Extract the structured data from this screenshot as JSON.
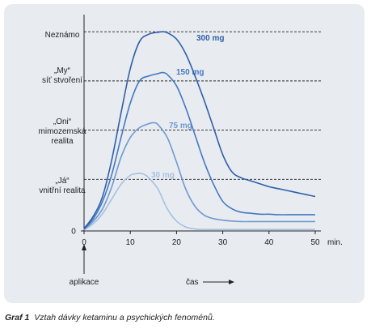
{
  "caption": {
    "label": "Graf 1",
    "text": "Vztah dávky ketaminu a psychických fenoménů."
  },
  "y_levels": [
    {
      "lines": [
        "Neznámo"
      ]
    },
    {
      "lines": [
        "„My“",
        "síť stvoření"
      ]
    },
    {
      "lines": [
        "„Oni“",
        "mimozemská",
        "realita"
      ]
    },
    {
      "lines": [
        "„Já“",
        "vnitřní realita"
      ]
    }
  ],
  "x_unit_label": "min.",
  "annotations": {
    "start": "aplikace",
    "time": "čas"
  },
  "colors": {
    "panel": "#e8ecf1",
    "axis": "#222222",
    "dose_300": "#2e5fa8",
    "dose_150": "#4478c0",
    "dose_75": "#6f98d0",
    "dose_30": "#a6c0e2"
  },
  "chart_data": {
    "type": "line",
    "title": "",
    "xlabel": "min.",
    "ylabel": "",
    "xlim": [
      0,
      50
    ],
    "ylim": [
      0,
      4.3
    ],
    "x_ticks": [
      0,
      10,
      20,
      30,
      40,
      50
    ],
    "y_ticks": [
      0
    ],
    "grid": false,
    "reference_lines": [
      1.05,
      2.05,
      3.05,
      4.05
    ],
    "series": [
      {
        "name": "300 mg",
        "color": "#2e5fa8",
        "x": [
          0,
          2,
          4,
          6,
          8,
          10,
          12,
          14,
          16,
          17,
          18,
          20,
          22,
          24,
          26,
          28,
          30,
          32,
          34,
          36,
          38,
          40,
          42,
          44,
          46,
          48,
          50
        ],
        "y": [
          0.05,
          0.3,
          0.7,
          1.45,
          2.4,
          3.3,
          3.85,
          4.0,
          4.04,
          4.05,
          4.03,
          3.9,
          3.6,
          3.15,
          2.65,
          2.1,
          1.55,
          1.2,
          1.08,
          1.02,
          0.96,
          0.9,
          0.86,
          0.82,
          0.78,
          0.74,
          0.7
        ]
      },
      {
        "name": "150 mg",
        "color": "#4478c0",
        "x": [
          0,
          2,
          4,
          6,
          8,
          10,
          12,
          14,
          16,
          17,
          18,
          20,
          22,
          24,
          26,
          28,
          30,
          32,
          34,
          36,
          38,
          40,
          42,
          44,
          46,
          48,
          50
        ],
        "y": [
          0.04,
          0.25,
          0.6,
          1.15,
          1.9,
          2.6,
          3.05,
          3.15,
          3.2,
          3.22,
          3.18,
          2.95,
          2.5,
          1.95,
          1.4,
          0.95,
          0.6,
          0.45,
          0.38,
          0.36,
          0.34,
          0.34,
          0.33,
          0.33,
          0.33,
          0.33,
          0.33
        ]
      },
      {
        "name": "75 mg",
        "color": "#6f98d0",
        "x": [
          0,
          2,
          4,
          6,
          8,
          10,
          12,
          14,
          15,
          16,
          18,
          20,
          22,
          24,
          26,
          28,
          30,
          32,
          34,
          36,
          38,
          40,
          42,
          44,
          46,
          48,
          50
        ],
        "y": [
          0.03,
          0.2,
          0.45,
          0.9,
          1.5,
          1.9,
          2.1,
          2.18,
          2.2,
          2.16,
          1.9,
          1.4,
          0.85,
          0.5,
          0.32,
          0.25,
          0.22,
          0.2,
          0.19,
          0.19,
          0.19,
          0.19,
          0.19,
          0.19,
          0.19,
          0.19,
          0.19
        ]
      },
      {
        "name": "30 mg",
        "color": "#a6c0e2",
        "x": [
          0,
          2,
          4,
          6,
          8,
          10,
          11,
          12,
          13,
          14,
          16,
          18,
          20,
          22,
          24,
          26,
          28,
          30,
          32,
          34,
          36,
          38,
          40,
          42,
          44,
          46,
          48,
          50
        ],
        "y": [
          0.02,
          0.15,
          0.35,
          0.65,
          0.95,
          1.13,
          1.16,
          1.17,
          1.15,
          1.08,
          0.85,
          0.45,
          0.2,
          0.08,
          0.04,
          0.03,
          0.03,
          0.03,
          0.03,
          0.03,
          0.03,
          0.03,
          0.03,
          0.03,
          0.03,
          0.03,
          0.03,
          0.03
        ]
      }
    ]
  }
}
